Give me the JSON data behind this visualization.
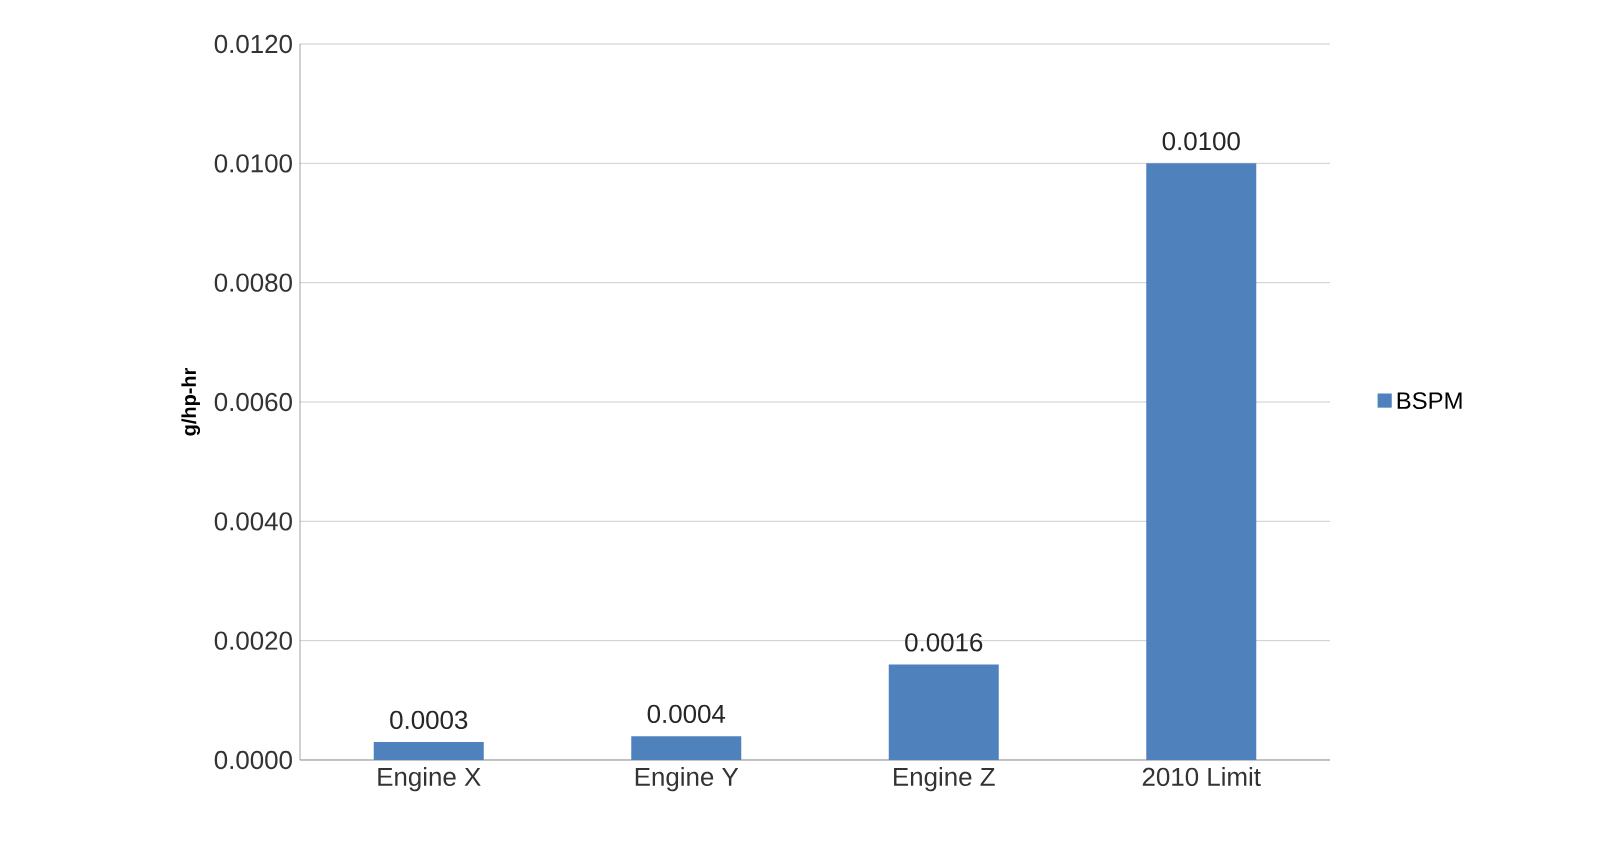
{
  "chart_data": {
    "type": "bar",
    "ylabel": "g/hp-hr",
    "categories": [
      "Engine X",
      "Engine Y",
      "Engine Z",
      "2010 Limit"
    ],
    "series": [
      {
        "name": "BSPM",
        "color": "#4f81bd",
        "values": [
          0.0003,
          0.0004,
          0.0016,
          0.01
        ],
        "value_labels": [
          "0.0003",
          "0.0004",
          "0.0016",
          "0.0100"
        ]
      }
    ],
    "ylim": [
      0,
      0.012
    ],
    "yticks": [
      {
        "value": 0,
        "label": "0.0000"
      },
      {
        "value": 0.002,
        "label": "0.0020"
      },
      {
        "value": 0.004,
        "label": "0.0040"
      },
      {
        "value": 0.006,
        "label": "0.0060"
      },
      {
        "value": 0.008,
        "label": "0.0080"
      },
      {
        "value": 0.01,
        "label": "0.0100"
      },
      {
        "value": 0.012,
        "label": "0.0120"
      }
    ],
    "grid": "y",
    "legend": "right"
  }
}
